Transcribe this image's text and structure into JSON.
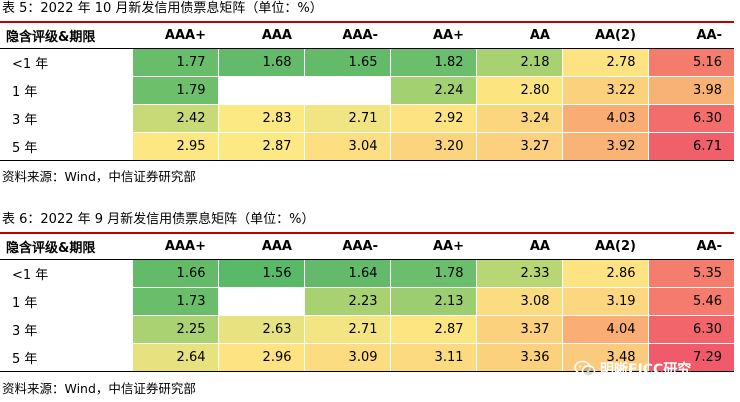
{
  "tables": [
    {
      "title": "表 5：2022 年 10 月新发信用债票息矩阵（单位：%）",
      "headers": [
        "隐含评级&期限",
        "AAA+",
        "AAA",
        "AAA-",
        "AA+",
        "AA",
        "AA(2)",
        "AA-"
      ],
      "rows": [
        {
          "label": "<1 年",
          "cells": [
            {
              "value": "1.77",
              "color": "#68bd6b"
            },
            {
              "value": "1.68",
              "color": "#62ba6a"
            },
            {
              "value": "1.65",
              "color": "#63bb6a"
            },
            {
              "value": "1.82",
              "color": "#6bbe6b"
            },
            {
              "value": "2.18",
              "color": "#a8d271"
            },
            {
              "value": "2.78",
              "color": "#fde381"
            },
            {
              "value": "5.16",
              "color": "#f47c6c"
            }
          ]
        },
        {
          "label": "1 年",
          "cells": [
            {
              "value": "1.79",
              "color": "#6ebf6c"
            },
            {
              "value": "",
              "color": "#ffffff"
            },
            {
              "value": "",
              "color": "#ffffff"
            },
            {
              "value": "2.24",
              "color": "#a3d071"
            },
            {
              "value": "2.80",
              "color": "#fce481"
            },
            {
              "value": "3.22",
              "color": "#fcd17e"
            },
            {
              "value": "3.98",
              "color": "#f9b276"
            }
          ]
        },
        {
          "label": "3 年",
          "cells": [
            {
              "value": "2.42",
              "color": "#c8da77"
            },
            {
              "value": "2.83",
              "color": "#fce983"
            },
            {
              "value": "2.71",
              "color": "#f0e582"
            },
            {
              "value": "2.92",
              "color": "#fde381"
            },
            {
              "value": "3.24",
              "color": "#fcd57f"
            },
            {
              "value": "4.03",
              "color": "#f9ad75"
            },
            {
              "value": "6.30",
              "color": "#f26d6b"
            }
          ]
        },
        {
          "label": "5 年",
          "cells": [
            {
              "value": "2.95",
              "color": "#fde783"
            },
            {
              "value": "2.87",
              "color": "#fde983"
            },
            {
              "value": "3.04",
              "color": "#fdde80"
            },
            {
              "value": "3.20",
              "color": "#fcd47e"
            },
            {
              "value": "3.27",
              "color": "#fcd07e"
            },
            {
              "value": "3.92",
              "color": "#f9b377"
            },
            {
              "value": "6.71",
              "color": "#f0606a"
            }
          ]
        }
      ],
      "source": "资料来源：Wind，中信证券研究部"
    },
    {
      "title": "表 6：2022 年 9 月新发信用债票息矩阵（单位：%）",
      "headers": [
        "隐含评级&期限",
        "AAA+",
        "AAA",
        "AAA-",
        "AA+",
        "AA",
        "AA(2)",
        "AA-"
      ],
      "rows": [
        {
          "label": "<1 年",
          "cells": [
            {
              "value": "1.66",
              "color": "#63bb6a"
            },
            {
              "value": "1.56",
              "color": "#5ab869"
            },
            {
              "value": "1.64",
              "color": "#62ba6a"
            },
            {
              "value": "1.78",
              "color": "#6bbe6b"
            },
            {
              "value": "2.33",
              "color": "#b9d674"
            },
            {
              "value": "2.86",
              "color": "#fde381"
            },
            {
              "value": "5.35",
              "color": "#f47d6e"
            }
          ]
        },
        {
          "label": "1 年",
          "cells": [
            {
              "value": "1.73",
              "color": "#6abe6b"
            },
            {
              "value": "",
              "color": "#ffffff"
            },
            {
              "value": "2.23",
              "color": "#a8d271"
            },
            {
              "value": "2.13",
              "color": "#9ccd70"
            },
            {
              "value": "3.08",
              "color": "#fcdc80"
            },
            {
              "value": "3.19",
              "color": "#fcd77f"
            },
            {
              "value": "5.46",
              "color": "#f47b6d"
            }
          ]
        },
        {
          "label": "3 年",
          "cells": [
            {
              "value": "2.25",
              "color": "#aad272"
            },
            {
              "value": "2.63",
              "color": "#e8e280"
            },
            {
              "value": "2.71",
              "color": "#f3e682"
            },
            {
              "value": "2.87",
              "color": "#fde581"
            },
            {
              "value": "3.37",
              "color": "#fcd17e"
            },
            {
              "value": "4.04",
              "color": "#faae76"
            },
            {
              "value": "6.30",
              "color": "#f2666b"
            }
          ]
        },
        {
          "label": "5 年",
          "cells": [
            {
              "value": "2.64",
              "color": "#e8e180"
            },
            {
              "value": "2.96",
              "color": "#fde381"
            },
            {
              "value": "3.09",
              "color": "#fcdc80"
            },
            {
              "value": "3.11",
              "color": "#fcda7f"
            },
            {
              "value": "3.36",
              "color": "#fcd17e"
            },
            {
              "value": "3.48",
              "color": "#fbcb7d"
            },
            {
              "value": "7.29",
              "color": "#f05a6a"
            }
          ]
        }
      ],
      "source": "资料来源：Wind，中信证券研究部"
    }
  ],
  "watermark": {
    "text": "明晰FICC研究",
    "icon": "wechat-icon"
  }
}
